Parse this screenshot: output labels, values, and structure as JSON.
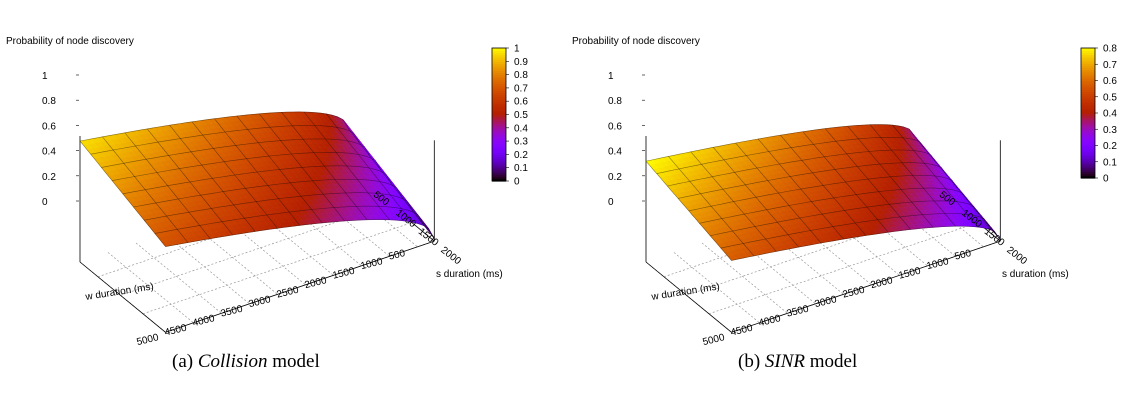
{
  "captions": [
    {
      "prefix": "(a) ",
      "em": "Collision",
      "suffix": " model"
    },
    {
      "prefix": "(b) ",
      "em": "SINR",
      "suffix": " model"
    }
  ],
  "chart_data": [
    {
      "type": "surface3d",
      "title": "Probability of node discovery",
      "xlabel": "w duration (ms)",
      "ylabel": "s duration (ms)",
      "zlabel": "Probability of node discovery",
      "x_ticks": [
        5000,
        4500,
        4000,
        3500,
        3000,
        2500,
        2000,
        1500,
        1000,
        500
      ],
      "y_ticks": [
        500,
        1000,
        1500,
        2000
      ],
      "z_ticks": [
        0,
        0.2,
        0.4,
        0.6,
        0.8,
        1
      ],
      "xlim": [
        200,
        5000
      ],
      "ylim": [
        100,
        2000
      ],
      "zlim": [
        0,
        1
      ],
      "colorbar_ticks": [
        0,
        0.1,
        0.2,
        0.3,
        0.4,
        0.5,
        0.6,
        0.7,
        0.8,
        0.9,
        1
      ],
      "colorbar_range": [
        0,
        1
      ],
      "grid": true,
      "colorbar_position": "right",
      "surface_corner_values": {
        "w5000_s2000": 0.68,
        "w5000_s100": 0.96,
        "w200_s2000": 0.02,
        "w200_s100": 0.33
      }
    },
    {
      "type": "surface3d",
      "title": "Probability of node discovery",
      "xlabel": "w duration (ms)",
      "ylabel": "s duration (ms)",
      "zlabel": "Probability of node discovery",
      "x_ticks": [
        5000,
        4500,
        4000,
        3500,
        3000,
        2500,
        2000,
        1500,
        1000,
        500
      ],
      "y_ticks": [
        500,
        1000,
        1500,
        2000
      ],
      "z_ticks": [
        0,
        0.2,
        0.4,
        0.6,
        0.8,
        1
      ],
      "xlim": [
        200,
        5000
      ],
      "ylim": [
        100,
        2000
      ],
      "zlim": [
        0,
        1
      ],
      "colorbar_ticks": [
        0,
        0.1,
        0.2,
        0.3,
        0.4,
        0.5,
        0.6,
        0.7,
        0.8
      ],
      "colorbar_range": [
        0,
        0.8
      ],
      "grid": true,
      "colorbar_position": "right",
      "surface_corner_values": {
        "w5000_s2000": 0.57,
        "w5000_s100": 0.8,
        "w200_s2000": 0.01,
        "w200_s100": 0.27
      }
    }
  ]
}
